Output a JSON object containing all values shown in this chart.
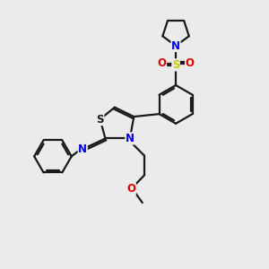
{
  "bg_color": "#ebebeb",
  "bond_color": "#1a1a1a",
  "bond_width": 1.6,
  "font_size": 8.5,
  "colors": {
    "N": "#0000dd",
    "S_sul": "#cccc00",
    "O": "#dd0000",
    "S_thz": "#1a1a1a",
    "C": "#1a1a1a"
  },
  "xlim": [
    0,
    10
  ],
  "ylim": [
    0,
    10
  ]
}
